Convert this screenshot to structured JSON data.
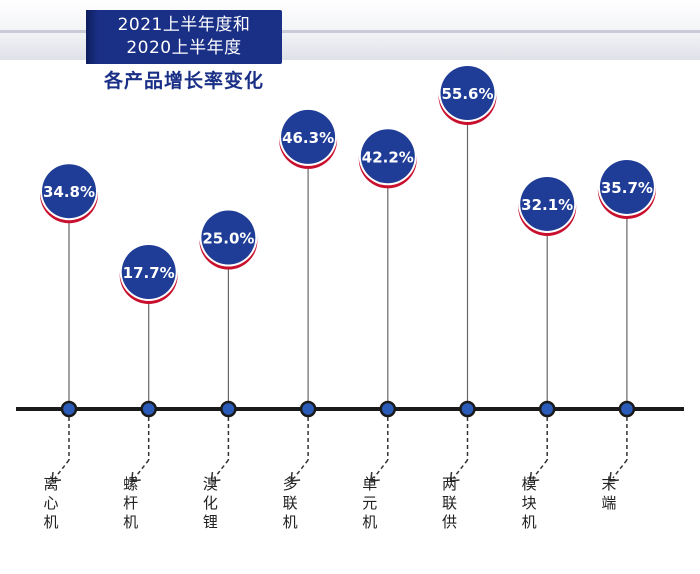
{
  "title": {
    "line1": "2021上半年度和",
    "line2": "2020上半年度",
    "subtitle": "各产品增长率变化"
  },
  "colors": {
    "accent": "#1a2f86",
    "bubble_fill": "#1f3c96",
    "bubble_ring": "#c8102e",
    "timeline": "#1a1a1a",
    "dot_fill": "#2b5bb8"
  },
  "chart_data": {
    "type": "timeline-bubble",
    "categories": [
      "离心机",
      "螺杆机",
      "溴化锂",
      "多联机",
      "单元机",
      "两联供",
      "模块机",
      "末端"
    ],
    "values": [
      34.8,
      17.7,
      25.0,
      46.3,
      42.2,
      55.6,
      32.1,
      35.7
    ],
    "value_labels": [
      "34.8%",
      "17.7%",
      "25.0%",
      "46.3%",
      "42.2%",
      "55.6%",
      "32.1%",
      "35.7%"
    ],
    "unit": "%"
  }
}
